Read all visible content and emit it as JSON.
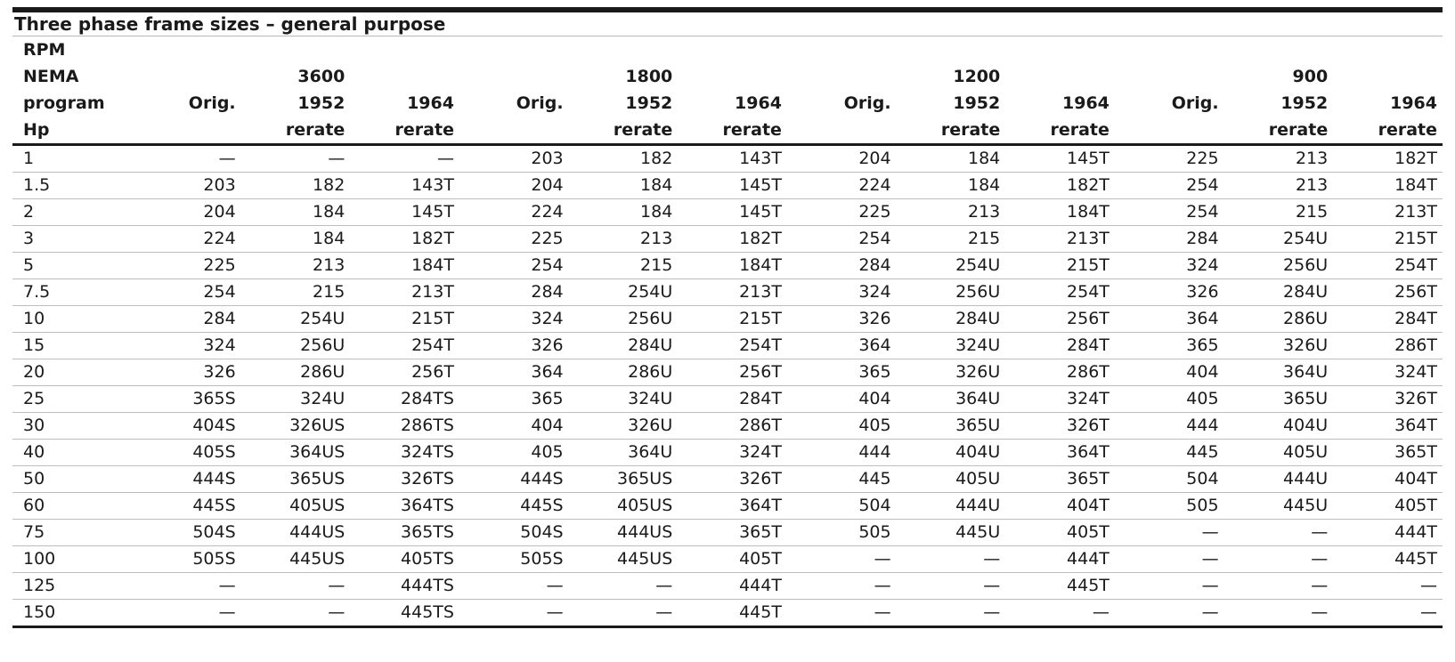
{
  "table": {
    "title": "Three phase frame sizes – general purpose",
    "header": {
      "rpm_label": "RPM",
      "nema_label": "NEMA",
      "program_label": "program",
      "hp_label": "Hp",
      "rpm_values": [
        "3600",
        "1800",
        "1200",
        "900"
      ],
      "orig_label": "Orig.",
      "year_1952": "1952",
      "year_1964": "1964",
      "rerate_label": "rerate"
    },
    "rows": [
      {
        "hp": "1",
        "v": [
          "—",
          "—",
          "—",
          "203",
          "182",
          "143T",
          "204",
          "184",
          "145T",
          "225",
          "213",
          "182T"
        ]
      },
      {
        "hp": "1.5",
        "v": [
          "203",
          "182",
          "143T",
          "204",
          "184",
          "145T",
          "224",
          "184",
          "182T",
          "254",
          "213",
          "184T"
        ]
      },
      {
        "hp": "2",
        "v": [
          "204",
          "184",
          "145T",
          "224",
          "184",
          "145T",
          "225",
          "213",
          "184T",
          "254",
          "215",
          "213T"
        ]
      },
      {
        "hp": "3",
        "v": [
          "224",
          "184",
          "182T",
          "225",
          "213",
          "182T",
          "254",
          "215",
          "213T",
          "284",
          "254U",
          "215T"
        ]
      },
      {
        "hp": "5",
        "v": [
          "225",
          "213",
          "184T",
          "254",
          "215",
          "184T",
          "284",
          "254U",
          "215T",
          "324",
          "256U",
          "254T"
        ]
      },
      {
        "hp": "7.5",
        "v": [
          "254",
          "215",
          "213T",
          "284",
          "254U",
          "213T",
          "324",
          "256U",
          "254T",
          "326",
          "284U",
          "256T"
        ]
      },
      {
        "hp": "10",
        "v": [
          "284",
          "254U",
          "215T",
          "324",
          "256U",
          "215T",
          "326",
          "284U",
          "256T",
          "364",
          "286U",
          "284T"
        ]
      },
      {
        "hp": "15",
        "v": [
          "324",
          "256U",
          "254T",
          "326",
          "284U",
          "254T",
          "364",
          "324U",
          "284T",
          "365",
          "326U",
          "286T"
        ]
      },
      {
        "hp": "20",
        "v": [
          "326",
          "286U",
          "256T",
          "364",
          "286U",
          "256T",
          "365",
          "326U",
          "286T",
          "404",
          "364U",
          "324T"
        ]
      },
      {
        "hp": "25",
        "v": [
          "365S",
          "324U",
          "284TS",
          "365",
          "324U",
          "284T",
          "404",
          "364U",
          "324T",
          "405",
          "365U",
          "326T"
        ]
      },
      {
        "hp": "30",
        "v": [
          "404S",
          "326US",
          "286TS",
          "404",
          "326U",
          "286T",
          "405",
          "365U",
          "326T",
          "444",
          "404U",
          "364T"
        ]
      },
      {
        "hp": "40",
        "v": [
          "405S",
          "364US",
          "324TS",
          "405",
          "364U",
          "324T",
          "444",
          "404U",
          "364T",
          "445",
          "405U",
          "365T"
        ]
      },
      {
        "hp": "50",
        "v": [
          "444S",
          "365US",
          "326TS",
          "444S",
          "365US",
          "326T",
          "445",
          "405U",
          "365T",
          "504",
          "444U",
          "404T"
        ]
      },
      {
        "hp": "60",
        "v": [
          "445S",
          "405US",
          "364TS",
          "445S",
          "405US",
          "364T",
          "504",
          "444U",
          "404T",
          "505",
          "445U",
          "405T"
        ]
      },
      {
        "hp": "75",
        "v": [
          "504S",
          "444US",
          "365TS",
          "504S",
          "444US",
          "365T",
          "505",
          "445U",
          "405T",
          "—",
          "—",
          "444T"
        ]
      },
      {
        "hp": "100",
        "v": [
          "505S",
          "445US",
          "405TS",
          "505S",
          "445US",
          "405T",
          "—",
          "—",
          "444T",
          "—",
          "—",
          "445T"
        ]
      },
      {
        "hp": "125",
        "v": [
          "—",
          "—",
          "444TS",
          "—",
          "—",
          "444T",
          "—",
          "—",
          "445T",
          "—",
          "—",
          "—"
        ]
      },
      {
        "hp": "150",
        "v": [
          "—",
          "—",
          "445TS",
          "—",
          "—",
          "445T",
          "—",
          "—",
          "—",
          "—",
          "—",
          "—"
        ]
      }
    ]
  }
}
